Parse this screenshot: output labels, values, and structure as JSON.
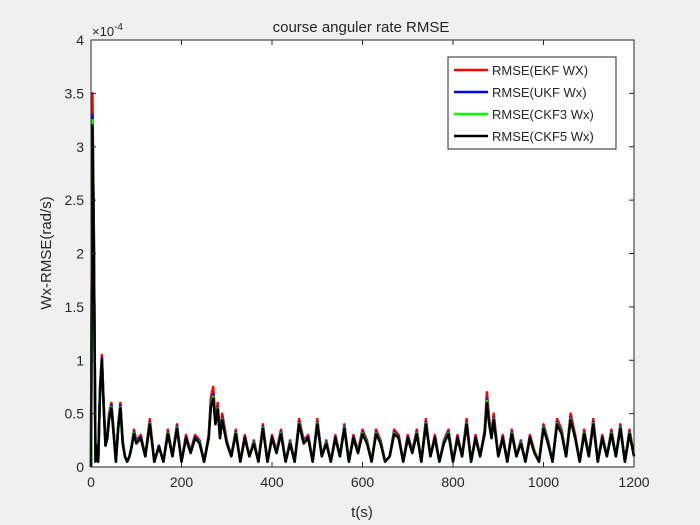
{
  "chart_data": {
    "type": "line",
    "title": "course anguler rate RMSE",
    "xlabel": "t(s)",
    "ylabel": "Wx-RMSE(rad/s)",
    "exponent_label": "×10",
    "exponent_power": "-4",
    "xlim": [
      0,
      1200
    ],
    "ylim": [
      0,
      4
    ],
    "x_ticks": [
      "0",
      "200",
      "400",
      "600",
      "800",
      "1000",
      "1200"
    ],
    "y_ticks": [
      "0",
      "0.5",
      "1",
      "1.5",
      "2",
      "2.5",
      "3",
      "3.5",
      "4"
    ],
    "legend_position": "top-right",
    "grid": false,
    "series": [
      {
        "name": "RMSE(EKF WX)",
        "color": "#ff0000"
      },
      {
        "name": "RMSE(UKF Wx)",
        "color": "#0000ff"
      },
      {
        "name": "RMSE(CKF3 Wx)",
        "color": "#00ff00"
      },
      {
        "name": "RMSE(CKF5 Wx)",
        "color": "#000000"
      }
    ],
    "x": [
      0,
      3,
      6,
      10,
      13,
      16,
      20,
      24,
      28,
      32,
      36,
      40,
      45,
      50,
      55,
      60,
      65,
      70,
      75,
      80,
      85,
      90,
      95,
      100,
      110,
      120,
      130,
      140,
      150,
      160,
      170,
      180,
      190,
      200,
      210,
      220,
      230,
      240,
      250,
      260,
      265,
      270,
      275,
      280,
      285,
      290,
      300,
      310,
      320,
      330,
      340,
      350,
      360,
      370,
      380,
      390,
      400,
      410,
      420,
      430,
      440,
      450,
      460,
      470,
      480,
      490,
      500,
      510,
      520,
      530,
      540,
      550,
      560,
      570,
      580,
      590,
      600,
      610,
      620,
      630,
      640,
      650,
      660,
      670,
      680,
      690,
      700,
      710,
      720,
      730,
      740,
      750,
      760,
      770,
      780,
      790,
      800,
      810,
      820,
      830,
      840,
      850,
      860,
      870,
      875,
      880,
      885,
      890,
      900,
      910,
      920,
      930,
      940,
      950,
      960,
      970,
      980,
      990,
      1000,
      1010,
      1020,
      1030,
      1040,
      1050,
      1060,
      1070,
      1080,
      1090,
      1100,
      1110,
      1120,
      1130,
      1140,
      1150,
      1160,
      1170,
      1180,
      1190,
      1200
    ],
    "values": [
      [
        0,
        3.5,
        2.4,
        0.05,
        0.2,
        0.05,
        0.75,
        1.05,
        0.6,
        0.2,
        0.3,
        0.5,
        0.6,
        0.35,
        0.05,
        0.4,
        0.6,
        0.25,
        0.1,
        0.05,
        0.1,
        0.2,
        0.35,
        0.25,
        0.3,
        0.1,
        0.45,
        0.05,
        0.2,
        0.05,
        0.35,
        0.1,
        0.4,
        0.05,
        0.3,
        0.15,
        0.3,
        0.25,
        0.05,
        0.3,
        0.65,
        0.75,
        0.45,
        0.6,
        0.3,
        0.5,
        0.25,
        0.1,
        0.35,
        0.05,
        0.3,
        0.1,
        0.25,
        0.05,
        0.4,
        0.05,
        0.3,
        0.15,
        0.35,
        0.05,
        0.25,
        0.05,
        0.45,
        0.25,
        0.3,
        0.05,
        0.45,
        0.1,
        0.25,
        0.05,
        0.3,
        0.1,
        0.4,
        0.05,
        0.3,
        0.15,
        0.35,
        0.25,
        0.05,
        0.35,
        0.25,
        0.05,
        0.1,
        0.35,
        0.3,
        0.05,
        0.3,
        0.15,
        0.35,
        0.05,
        0.45,
        0.1,
        0.3,
        0.05,
        0.25,
        0.35,
        0.05,
        0.3,
        0.1,
        0.45,
        0.05,
        0.3,
        0.1,
        0.35,
        0.7,
        0.45,
        0.3,
        0.5,
        0.1,
        0.3,
        0.05,
        0.35,
        0.1,
        0.25,
        0.05,
        0.3,
        0.15,
        0.05,
        0.4,
        0.25,
        0.05,
        0.45,
        0.35,
        0.1,
        0.5,
        0.3,
        0.05,
        0.35,
        0.1,
        0.45,
        0.05,
        0.3,
        0.1,
        0.35,
        0.1,
        0.4,
        0.05,
        0.35,
        0.1
      ],
      [
        0,
        3.3,
        2.3,
        0.05,
        0.2,
        0.05,
        0.72,
        1.02,
        0.58,
        0.2,
        0.28,
        0.48,
        0.58,
        0.33,
        0.05,
        0.38,
        0.58,
        0.24,
        0.1,
        0.05,
        0.1,
        0.2,
        0.33,
        0.24,
        0.28,
        0.1,
        0.42,
        0.05,
        0.2,
        0.05,
        0.33,
        0.1,
        0.38,
        0.05,
        0.28,
        0.14,
        0.28,
        0.24,
        0.05,
        0.28,
        0.6,
        0.68,
        0.42,
        0.56,
        0.28,
        0.46,
        0.24,
        0.1,
        0.33,
        0.05,
        0.28,
        0.1,
        0.24,
        0.05,
        0.38,
        0.05,
        0.28,
        0.14,
        0.33,
        0.05,
        0.24,
        0.05,
        0.42,
        0.24,
        0.28,
        0.05,
        0.42,
        0.1,
        0.24,
        0.05,
        0.28,
        0.1,
        0.38,
        0.05,
        0.28,
        0.14,
        0.33,
        0.24,
        0.05,
        0.33,
        0.24,
        0.05,
        0.1,
        0.33,
        0.28,
        0.05,
        0.28,
        0.14,
        0.33,
        0.05,
        0.42,
        0.1,
        0.28,
        0.05,
        0.24,
        0.33,
        0.05,
        0.28,
        0.1,
        0.42,
        0.05,
        0.28,
        0.1,
        0.33,
        0.64,
        0.42,
        0.28,
        0.46,
        0.1,
        0.28,
        0.05,
        0.33,
        0.1,
        0.24,
        0.05,
        0.28,
        0.14,
        0.05,
        0.38,
        0.24,
        0.05,
        0.42,
        0.33,
        0.1,
        0.46,
        0.28,
        0.05,
        0.33,
        0.1,
        0.42,
        0.05,
        0.28,
        0.1,
        0.33,
        0.1,
        0.38,
        0.05,
        0.33,
        0.1
      ],
      [
        0,
        3.25,
        2.25,
        0.05,
        0.2,
        0.05,
        0.7,
        1.0,
        0.56,
        0.2,
        0.27,
        0.46,
        0.56,
        0.32,
        0.05,
        0.37,
        0.56,
        0.23,
        0.1,
        0.05,
        0.1,
        0.19,
        0.32,
        0.23,
        0.27,
        0.1,
        0.41,
        0.05,
        0.19,
        0.05,
        0.32,
        0.1,
        0.37,
        0.05,
        0.27,
        0.14,
        0.27,
        0.23,
        0.05,
        0.27,
        0.58,
        0.66,
        0.41,
        0.55,
        0.27,
        0.45,
        0.23,
        0.1,
        0.32,
        0.05,
        0.27,
        0.1,
        0.23,
        0.05,
        0.37,
        0.05,
        0.27,
        0.14,
        0.32,
        0.05,
        0.23,
        0.05,
        0.41,
        0.23,
        0.27,
        0.05,
        0.41,
        0.1,
        0.23,
        0.05,
        0.27,
        0.1,
        0.37,
        0.05,
        0.27,
        0.14,
        0.32,
        0.23,
        0.05,
        0.32,
        0.23,
        0.05,
        0.1,
        0.32,
        0.27,
        0.05,
        0.27,
        0.14,
        0.32,
        0.05,
        0.41,
        0.1,
        0.27,
        0.05,
        0.23,
        0.32,
        0.05,
        0.27,
        0.1,
        0.41,
        0.05,
        0.27,
        0.1,
        0.32,
        0.62,
        0.41,
        0.27,
        0.45,
        0.1,
        0.27,
        0.05,
        0.32,
        0.1,
        0.23,
        0.05,
        0.27,
        0.14,
        0.05,
        0.37,
        0.23,
        0.05,
        0.41,
        0.32,
        0.1,
        0.45,
        0.27,
        0.05,
        0.32,
        0.1,
        0.41,
        0.05,
        0.27,
        0.1,
        0.32,
        0.1,
        0.37,
        0.05,
        0.32,
        0.1
      ],
      [
        0,
        3.2,
        2.2,
        0.05,
        0.2,
        0.05,
        0.7,
        1.0,
        0.55,
        0.2,
        0.27,
        0.45,
        0.55,
        0.31,
        0.05,
        0.36,
        0.55,
        0.22,
        0.1,
        0.05,
        0.1,
        0.19,
        0.31,
        0.22,
        0.27,
        0.1,
        0.4,
        0.05,
        0.19,
        0.05,
        0.31,
        0.1,
        0.36,
        0.05,
        0.27,
        0.13,
        0.27,
        0.22,
        0.05,
        0.27,
        0.57,
        0.64,
        0.4,
        0.54,
        0.27,
        0.44,
        0.22,
        0.1,
        0.31,
        0.05,
        0.27,
        0.1,
        0.22,
        0.05,
        0.36,
        0.05,
        0.27,
        0.13,
        0.31,
        0.05,
        0.22,
        0.05,
        0.4,
        0.22,
        0.27,
        0.05,
        0.4,
        0.1,
        0.22,
        0.05,
        0.27,
        0.1,
        0.36,
        0.05,
        0.27,
        0.13,
        0.31,
        0.22,
        0.05,
        0.31,
        0.22,
        0.05,
        0.1,
        0.31,
        0.27,
        0.05,
        0.27,
        0.13,
        0.31,
        0.05,
        0.4,
        0.1,
        0.27,
        0.05,
        0.22,
        0.31,
        0.05,
        0.27,
        0.1,
        0.4,
        0.05,
        0.27,
        0.1,
        0.31,
        0.6,
        0.4,
        0.27,
        0.44,
        0.1,
        0.27,
        0.05,
        0.31,
        0.1,
        0.22,
        0.05,
        0.27,
        0.13,
        0.05,
        0.36,
        0.22,
        0.05,
        0.4,
        0.31,
        0.1,
        0.44,
        0.27,
        0.05,
        0.31,
        0.1,
        0.4,
        0.05,
        0.27,
        0.1,
        0.31,
        0.1,
        0.36,
        0.05,
        0.31,
        0.1
      ]
    ]
  }
}
